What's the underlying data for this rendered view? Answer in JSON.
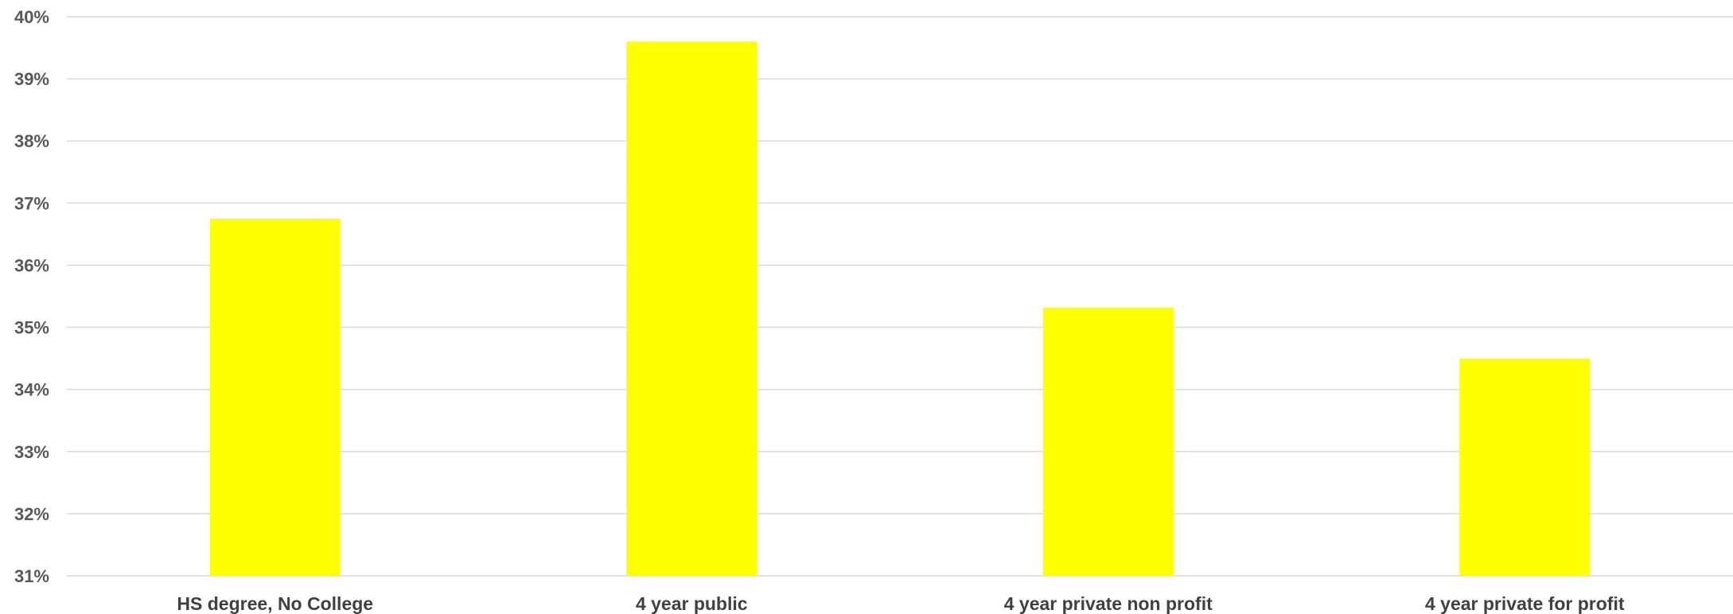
{
  "chart_data": {
    "type": "bar",
    "title": "",
    "xlabel": "",
    "ylabel": "",
    "categories": [
      "HS degree, No College",
      "4 year public",
      "4 year private non profit",
      "4 year private for profit"
    ],
    "values": [
      36.75,
      39.6,
      35.32,
      34.5
    ],
    "ylim": [
      31,
      40
    ],
    "yticks": [
      31,
      32,
      33,
      34,
      35,
      36,
      37,
      38,
      39,
      40
    ],
    "ytick_labels": [
      "31%",
      "32%",
      "33%",
      "34%",
      "35%",
      "36%",
      "37%",
      "38%",
      "39%",
      "40%"
    ],
    "value_unit": "%",
    "grid": true,
    "legend": "none",
    "bar_color": "#ffff00",
    "grid_color": "#d9d9d9"
  }
}
